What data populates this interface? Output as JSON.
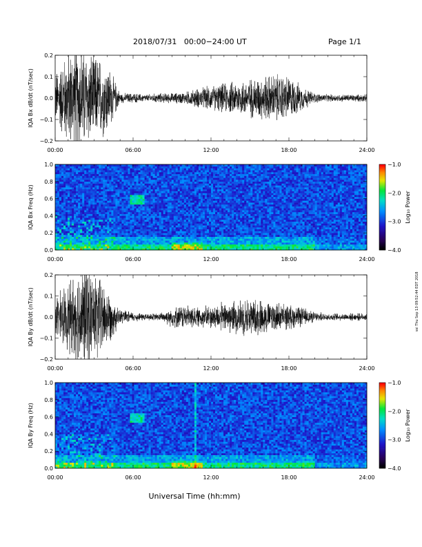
{
  "header": {
    "title": "2018/07/31   00:00−24:00 UT",
    "page": "Page 1/1"
  },
  "xlabel": "Universal Time (hh:mm)",
  "stamp": "ssi Thu Sep 13 09:52:44 EDT 2018",
  "colorbar": {
    "label": "Log₁₀ Power",
    "ticks": [
      "−1.0",
      "−2.0",
      "−3.0",
      "−4.0"
    ],
    "values": [
      -1.0,
      -2.0,
      -3.0,
      -4.0
    ],
    "range": [
      -4.0,
      -1.0
    ]
  },
  "chart_data": [
    {
      "type": "line",
      "ylabel": "IQA Bx dB/dt (nT/sec)",
      "yticks": [
        "0.2",
        "0.1",
        "0.0",
        "−0.1",
        "−0.2"
      ],
      "yvalues": [
        0.2,
        0.1,
        0.0,
        -0.1,
        -0.2
      ],
      "ylim": [
        -0.2,
        0.2
      ],
      "xticks": [
        "00:00",
        "06:00",
        "12:00",
        "18:00",
        "24:00"
      ],
      "xlim": [
        0,
        24
      ],
      "amplitude_envelope": {
        "hour": [
          0,
          1,
          2,
          3,
          4,
          5,
          6,
          7,
          8,
          9,
          10,
          11,
          12,
          13,
          14,
          15,
          16,
          17,
          18,
          19,
          20,
          21,
          22,
          23,
          24
        ],
        "amp": [
          0.1,
          0.2,
          0.22,
          0.18,
          0.15,
          0.02,
          0.02,
          0.015,
          0.02,
          0.02,
          0.025,
          0.04,
          0.05,
          0.06,
          0.07,
          0.08,
          0.09,
          0.1,
          0.09,
          0.05,
          0.02,
          0.015,
          0.015,
          0.015,
          0.015
        ]
      }
    },
    {
      "type": "heatmap",
      "ylabel": "IQA Bx Freq (Hz)",
      "yticks": [
        "1.0",
        "0.8",
        "0.6",
        "0.4",
        "0.2",
        "0.0"
      ],
      "yvalues": [
        1.0,
        0.8,
        0.6,
        0.4,
        0.2,
        0.0
      ],
      "ylim": [
        0,
        1.0
      ],
      "xticks": [
        "00:00",
        "06:00",
        "12:00",
        "18:00",
        "24:00"
      ],
      "xlim": [
        0,
        24
      ],
      "zlim": [
        -4.0,
        -1.0
      ]
    },
    {
      "type": "line",
      "ylabel": "IQA By dB/dt (nT/sec)",
      "yticks": [
        "0.2",
        "0.1",
        "0.0",
        "−0.1",
        "−0.2"
      ],
      "yvalues": [
        0.2,
        0.1,
        0.0,
        -0.1,
        -0.2
      ],
      "ylim": [
        -0.2,
        0.2
      ],
      "xticks": [
        "00:00",
        "06:00",
        "12:00",
        "18:00",
        "24:00"
      ],
      "xlim": [
        0,
        24
      ],
      "amplitude_envelope": {
        "hour": [
          0,
          1,
          2,
          3,
          4,
          5,
          6,
          7,
          8,
          9,
          10,
          11,
          12,
          13,
          14,
          15,
          16,
          17,
          18,
          19,
          20,
          21,
          22,
          23,
          24
        ],
        "amp": [
          0.08,
          0.14,
          0.22,
          0.2,
          0.12,
          0.03,
          0.02,
          0.015,
          0.015,
          0.04,
          0.05,
          0.04,
          0.05,
          0.06,
          0.07,
          0.08,
          0.07,
          0.06,
          0.05,
          0.04,
          0.02,
          0.015,
          0.015,
          0.015,
          0.015
        ]
      }
    },
    {
      "type": "heatmap",
      "ylabel": "IQA By Freq (Hz)",
      "yticks": [
        "1.0",
        "0.8",
        "0.6",
        "0.4",
        "0.2",
        "0.0"
      ],
      "yvalues": [
        1.0,
        0.8,
        0.6,
        0.4,
        0.2,
        0.0
      ],
      "ylim": [
        0,
        1.0
      ],
      "xticks": [
        "00:00",
        "06:00",
        "12:00",
        "18:00",
        "24:00"
      ],
      "xlim": [
        0,
        24
      ],
      "zlim": [
        -4.0,
        -1.0
      ]
    }
  ]
}
